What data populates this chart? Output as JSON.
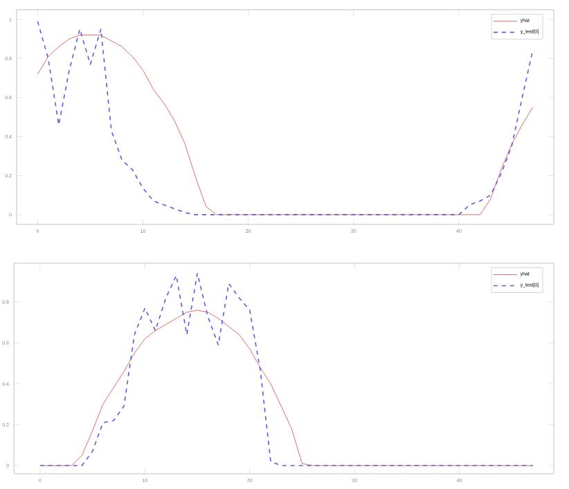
{
  "chart_data": [
    {
      "type": "line",
      "x": [
        0,
        1,
        2,
        3,
        4,
        5,
        6,
        7,
        8,
        9,
        10,
        11,
        12,
        13,
        14,
        15,
        16,
        17,
        18,
        19,
        20,
        21,
        22,
        23,
        24,
        25,
        26,
        27,
        28,
        29,
        30,
        31,
        32,
        33,
        34,
        35,
        36,
        37,
        38,
        39,
        40,
        41,
        42,
        43,
        44,
        45,
        46,
        47
      ],
      "series": [
        {
          "name": "yhat",
          "color": "#e05a5a",
          "line_style": "solid",
          "values": [
            0.72,
            0.81,
            0.86,
            0.9,
            0.92,
            0.92,
            0.92,
            0.89,
            0.86,
            0.81,
            0.74,
            0.64,
            0.57,
            0.48,
            0.36,
            0.19,
            0.04,
            0,
            0,
            0,
            0,
            0,
            0,
            0,
            0,
            0,
            0,
            0,
            0,
            0,
            0,
            0,
            0,
            0,
            0,
            0,
            0,
            0,
            0,
            0,
            0,
            0,
            0,
            0.08,
            0.23,
            0.36,
            0.46,
            0.55
          ]
        },
        {
          "name": "y_test[0]",
          "color": "#5a5ae6",
          "line_style": "dashed",
          "values": [
            0.99,
            0.8,
            0.46,
            0.74,
            0.95,
            0.77,
            0.95,
            0.43,
            0.28,
            0.23,
            0.135,
            0.07,
            0.05,
            0.03,
            0.01,
            0,
            0,
            0,
            0,
            0,
            0,
            0,
            0,
            0,
            0,
            0,
            0,
            0,
            0,
            0,
            0,
            0,
            0,
            0,
            0,
            0,
            0,
            0,
            0,
            0,
            0,
            0.05,
            0.07,
            0.1,
            0.21,
            0.35,
            0.6,
            0.84
          ]
        }
      ],
      "xlim": [
        -2,
        49
      ],
      "ylim": [
        -0.05,
        1.05
      ],
      "xticks": [
        0,
        10,
        20,
        30,
        40
      ],
      "yticks": [
        0,
        0.2,
        0.4,
        0.6,
        0.8,
        1
      ],
      "legend": "top right",
      "grid": false
    },
    {
      "type": "line",
      "x": [
        0,
        1,
        2,
        3,
        4,
        5,
        6,
        7,
        8,
        9,
        10,
        11,
        12,
        13,
        14,
        15,
        16,
        17,
        18,
        19,
        20,
        21,
        22,
        23,
        24,
        25,
        26,
        27,
        28,
        29,
        30,
        31,
        32,
        33,
        34,
        35,
        36,
        37,
        38,
        39,
        40,
        41,
        42,
        43,
        44,
        45,
        46,
        47
      ],
      "series": [
        {
          "name": "yhat",
          "color": "#e05a5a",
          "line_style": "solid",
          "values": [
            0,
            0,
            0,
            0,
            0.05,
            0.17,
            0.3,
            0.38,
            0.46,
            0.55,
            0.62,
            0.66,
            0.69,
            0.72,
            0.75,
            0.76,
            0.75,
            0.72,
            0.68,
            0.64,
            0.57,
            0.48,
            0.4,
            0.29,
            0.18,
            0.01,
            0,
            0,
            0,
            0,
            0,
            0,
            0,
            0,
            0,
            0,
            0,
            0,
            0,
            0,
            0,
            0,
            0,
            0,
            0,
            0,
            0,
            0
          ]
        },
        {
          "name": "y_test[0]",
          "color": "#5a5ae6",
          "line_style": "dashed",
          "values": [
            0,
            0,
            0,
            0,
            0,
            0.07,
            0.21,
            0.22,
            0.29,
            0.64,
            0.77,
            0.66,
            0.82,
            0.93,
            0.64,
            0.94,
            0.73,
            0.59,
            0.89,
            0.82,
            0.76,
            0.47,
            0.02,
            0,
            0,
            0,
            0,
            0,
            0,
            0,
            0,
            0,
            0,
            0,
            0,
            0,
            0,
            0,
            0,
            0,
            0,
            0,
            0,
            0,
            0,
            0,
            0,
            0
          ]
        }
      ],
      "xlim": [
        -2.5,
        49
      ],
      "ylim": [
        -0.04,
        0.99
      ],
      "xticks": [
        0,
        10,
        20,
        30,
        40
      ],
      "yticks": [
        0,
        0.2,
        0.4,
        0.6,
        0.8
      ],
      "legend": "top right",
      "grid": false
    }
  ]
}
